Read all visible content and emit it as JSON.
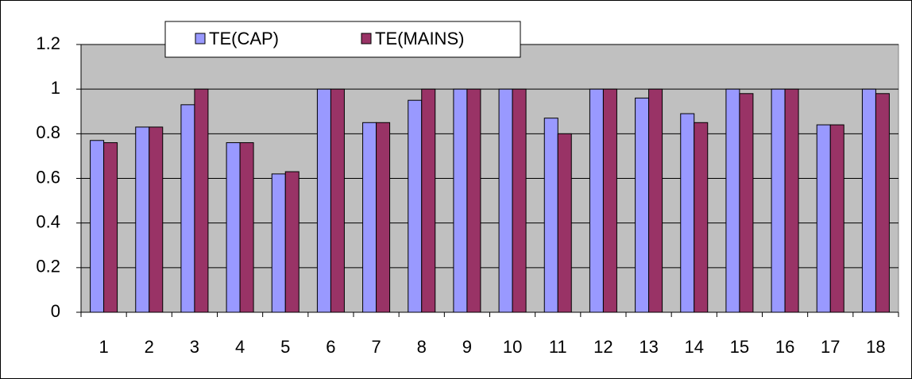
{
  "chart_data": {
    "type": "bar",
    "categories": [
      "1",
      "2",
      "3",
      "4",
      "5",
      "6",
      "7",
      "8",
      "9",
      "10",
      "11",
      "12",
      "13",
      "14",
      "15",
      "16",
      "17",
      "18"
    ],
    "series": [
      {
        "name": "TE(CAP)",
        "color": "#9999ff",
        "values": [
          0.77,
          0.83,
          0.93,
          0.76,
          0.62,
          1,
          0.85,
          0.95,
          1,
          1,
          0.87,
          1,
          0.96,
          0.89,
          1,
          1,
          0.84,
          1
        ]
      },
      {
        "name": "TE(MAINS)",
        "color": "#993366",
        "values": [
          0.76,
          0.83,
          1,
          0.76,
          0.63,
          1,
          0.85,
          1,
          1,
          1,
          0.8,
          1,
          1,
          0.85,
          0.98,
          1,
          0.84,
          0.98
        ]
      }
    ],
    "ylim": [
      0,
      1.2
    ],
    "yticks": [
      0,
      0.2,
      0.4,
      0.6,
      0.8,
      1,
      1.2
    ],
    "grid": true,
    "plot_background": "#c0c0c0",
    "legend": "top"
  }
}
